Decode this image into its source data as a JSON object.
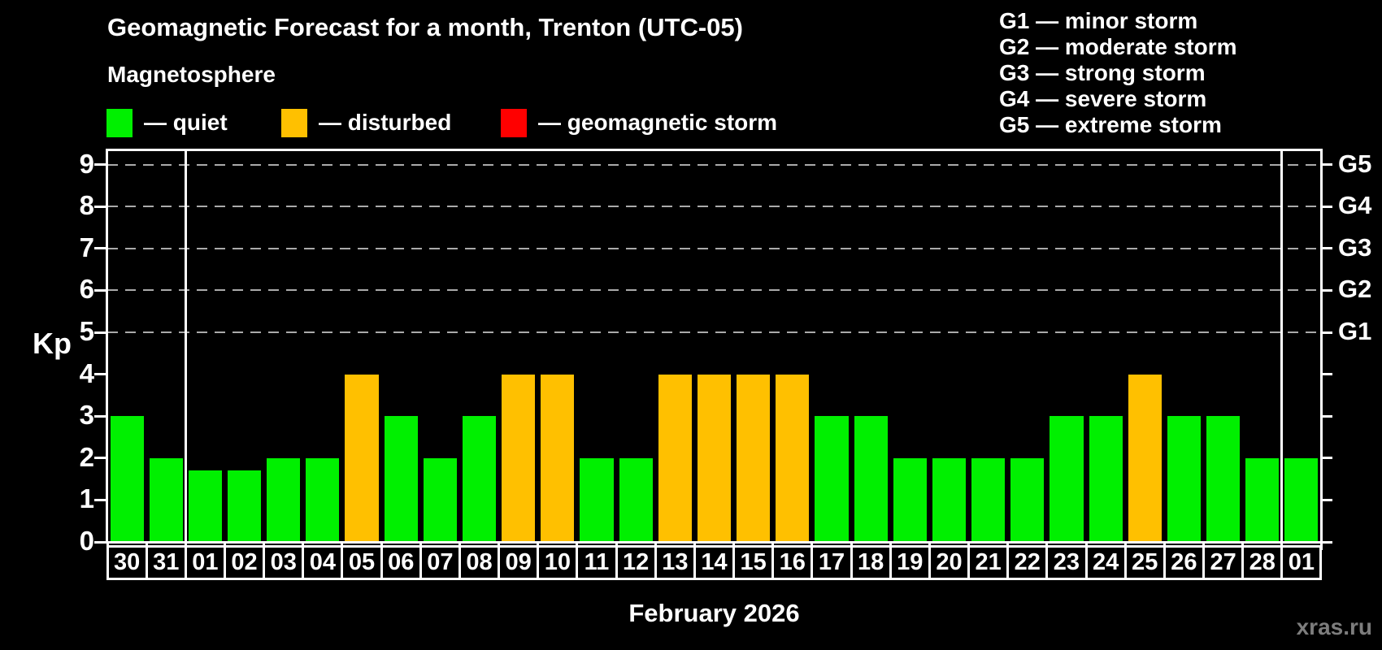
{
  "title": "Geomagnetic Forecast for a month, Trenton (UTC-05)",
  "subtitle": "Magnetosphere",
  "legend": {
    "items": [
      {
        "label": "— quiet",
        "status": "quiet",
        "color": "#00f000"
      },
      {
        "label": "— disturbed",
        "status": "disturbed",
        "color": "#ffc000"
      },
      {
        "label": "— geomagnetic storm",
        "status": "storm",
        "color": "#ff0000"
      }
    ]
  },
  "g_legend": [
    {
      "label": "G1 — minor storm"
    },
    {
      "label": "G2 — moderate storm"
    },
    {
      "label": "G3 — strong storm"
    },
    {
      "label": "G4 — severe storm"
    },
    {
      "label": "G5 — extreme storm"
    }
  ],
  "axes": {
    "y_label": "Kp",
    "y_ticks": [
      "0",
      "1",
      "2",
      "3",
      "4",
      "5",
      "6",
      "7",
      "8",
      "9"
    ],
    "g_scale": [
      {
        "label": "G1",
        "kp": 5
      },
      {
        "label": "G2",
        "kp": 6
      },
      {
        "label": "G3",
        "kp": 7
      },
      {
        "label": "G4",
        "kp": 8
      },
      {
        "label": "G5",
        "kp": 9
      }
    ],
    "x_label": "February 2026"
  },
  "watermark": "xras.ru",
  "chart_data": {
    "type": "bar",
    "title": "Geomagnetic Forecast for a month, Trenton (UTC-05)",
    "xlabel": "February 2026",
    "ylabel": "Kp",
    "ylim": [
      0,
      9.4
    ],
    "grid_on_kp_levels": [
      5,
      6,
      7,
      8,
      9
    ],
    "legend_position": "top",
    "categories": [
      "30",
      "31",
      "01",
      "02",
      "03",
      "04",
      "05",
      "06",
      "07",
      "08",
      "09",
      "10",
      "11",
      "12",
      "13",
      "14",
      "15",
      "16",
      "17",
      "18",
      "19",
      "20",
      "21",
      "22",
      "23",
      "24",
      "25",
      "26",
      "27",
      "28",
      "01"
    ],
    "values": [
      3,
      2,
      1.7,
      1.7,
      2,
      2,
      4,
      3,
      2,
      3,
      4,
      4,
      2,
      2,
      4,
      4,
      4,
      4,
      3,
      3,
      2,
      2,
      2,
      2,
      3,
      3,
      4,
      3,
      3,
      2,
      2
    ],
    "statuses": [
      "quiet",
      "quiet",
      "quiet",
      "quiet",
      "quiet",
      "quiet",
      "disturbed",
      "quiet",
      "quiet",
      "quiet",
      "disturbed",
      "disturbed",
      "quiet",
      "quiet",
      "disturbed",
      "disturbed",
      "disturbed",
      "disturbed",
      "quiet",
      "quiet",
      "quiet",
      "quiet",
      "quiet",
      "quiet",
      "quiet",
      "quiet",
      "disturbed",
      "quiet",
      "quiet",
      "quiet",
      "quiet"
    ],
    "colors": {
      "quiet": "#00f000",
      "disturbed": "#ffc000",
      "storm": "#ff0000"
    },
    "month_separator_before_index": [
      2,
      30
    ]
  }
}
